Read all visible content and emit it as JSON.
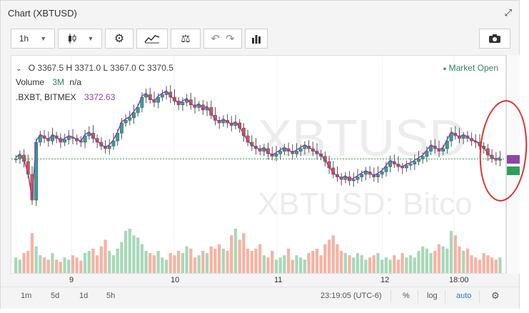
{
  "window": {
    "title": "Chart (XBTUSD)"
  },
  "toolbar": {
    "interval": "1h",
    "buttons": [
      "candle-type",
      "settings",
      "indicators",
      "compare",
      "undo",
      "redo",
      "bars",
      "snapshot"
    ]
  },
  "legend": {
    "ohlc": {
      "o_label": "O",
      "o": "3367.5",
      "h_label": "H",
      "h": "3371.0",
      "l_label": "L",
      "l": "3367.0",
      "c_label": "C",
      "c": "3370.5"
    },
    "volume_label": "Volume",
    "volume_period": "3M",
    "volume_value": "n/a",
    "index_label": ".BXBT, BITMEX",
    "index_value": "3372.63",
    "market_status": "Market Open"
  },
  "watermark": {
    "symbol": "XBTUSD",
    "desc": "XBTUSD: Bitco"
  },
  "xaxis": {
    "labels": [
      "9",
      "10",
      "11",
      "12",
      "18:00"
    ]
  },
  "bottombar": {
    "ranges": [
      "1m",
      "5d",
      "1d",
      "5h"
    ],
    "time": "23:19:05 (UTC-6)",
    "percent": "%",
    "log": "log",
    "auto": "auto"
  },
  "colors": {
    "up": "#26a69a",
    "down": "#e0543e",
    "ind": "#8e44ad",
    "market_open": "#2e8b57",
    "circle": "#e03030"
  },
  "chart_data": {
    "type": "candlestick",
    "ohlc_last": {
      "o": 3367.5,
      "h": 3371.0,
      "l": 3367.0,
      "c": 3370.5
    },
    "index_last": 3372.63,
    "x_labels": [
      "9",
      "10",
      "11",
      "12",
      "18:00"
    ],
    "closes": [
      0.42,
      0.45,
      0.4,
      0.3,
      0.1,
      0.55,
      0.6,
      0.58,
      0.56,
      0.6,
      0.58,
      0.55,
      0.57,
      0.59,
      0.58,
      0.56,
      0.55,
      0.6,
      0.62,
      0.58,
      0.55,
      0.52,
      0.5,
      0.52,
      0.56,
      0.62,
      0.7,
      0.72,
      0.74,
      0.78,
      0.82,
      0.9,
      0.92,
      0.88,
      0.86,
      0.9,
      0.92,
      0.94,
      0.9,
      0.87,
      0.84,
      0.86,
      0.88,
      0.84,
      0.82,
      0.84,
      0.8,
      0.82,
      0.76,
      0.72,
      0.7,
      0.72,
      0.7,
      0.68,
      0.7,
      0.66,
      0.6,
      0.55,
      0.52,
      0.5,
      0.48,
      0.5,
      0.46,
      0.44,
      0.46,
      0.48,
      0.5,
      0.48,
      0.46,
      0.48,
      0.5,
      0.52,
      0.5,
      0.48,
      0.46,
      0.44,
      0.4,
      0.35,
      0.3,
      0.28,
      0.26,
      0.28,
      0.25,
      0.26,
      0.28,
      0.3,
      0.32,
      0.3,
      0.28,
      0.3,
      0.32,
      0.36,
      0.4,
      0.38,
      0.36,
      0.35,
      0.37,
      0.38,
      0.4,
      0.42,
      0.44,
      0.48,
      0.52,
      0.5,
      0.48,
      0.5,
      0.56,
      0.62,
      0.6,
      0.58,
      0.6,
      0.58,
      0.56,
      0.55,
      0.52,
      0.5,
      0.45,
      0.42,
      0.41,
      0.42
    ],
    "volumes": [
      0.35,
      0.3,
      0.45,
      0.5,
      0.9,
      0.6,
      0.4,
      0.35,
      0.3,
      0.45,
      0.3,
      0.25,
      0.35,
      0.3,
      0.4,
      0.35,
      0.28,
      0.45,
      0.5,
      0.55,
      0.4,
      0.6,
      0.75,
      0.5,
      0.4,
      0.55,
      0.7,
      0.95,
      1.0,
      0.85,
      0.8,
      0.65,
      0.5,
      0.45,
      0.4,
      0.5,
      0.35,
      0.3,
      0.45,
      0.4,
      0.5,
      0.45,
      0.6,
      0.55,
      0.35,
      0.4,
      0.5,
      0.45,
      0.6,
      0.55,
      0.65,
      0.55,
      0.5,
      0.85,
      1.0,
      0.75,
      0.9,
      0.55,
      0.5,
      0.55,
      0.65,
      0.4,
      0.35,
      0.5,
      0.3,
      0.35,
      0.4,
      0.55,
      0.3,
      0.4,
      0.35,
      0.3,
      0.45,
      0.5,
      0.55,
      0.4,
      0.65,
      0.75,
      0.85,
      0.65,
      0.5,
      0.45,
      0.4,
      0.35,
      0.45,
      0.4,
      0.3,
      0.35,
      0.4,
      0.45,
      0.3,
      0.35,
      0.3,
      0.4,
      0.3,
      0.45,
      0.35,
      0.4,
      0.35,
      0.5,
      0.6,
      0.55,
      0.45,
      0.5,
      0.65,
      0.6,
      0.55,
      0.95,
      0.85,
      0.6,
      0.5,
      0.55,
      0.4,
      0.35,
      0.3,
      0.45,
      0.4,
      0.35,
      0.3,
      0.35
    ]
  }
}
